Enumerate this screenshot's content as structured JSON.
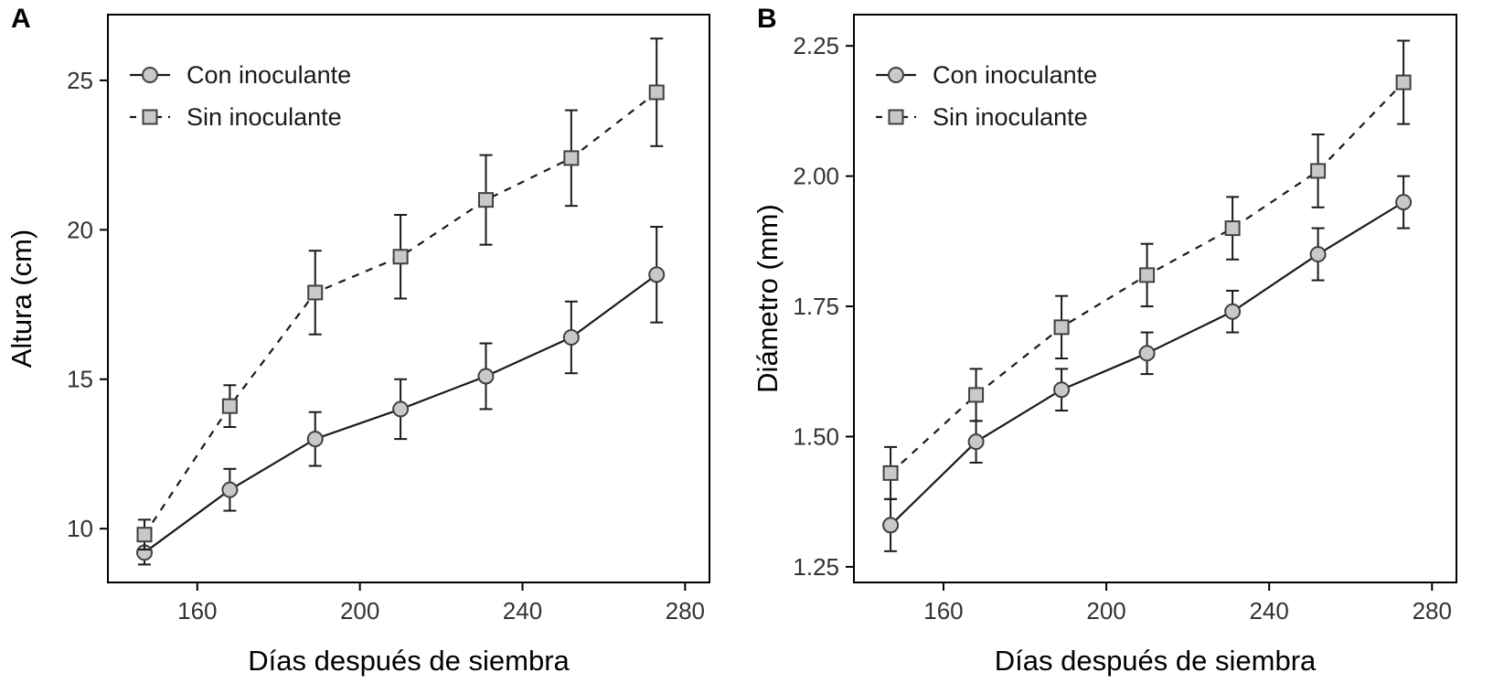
{
  "figure": {
    "background": "#ffffff"
  },
  "style": {
    "marker_fill": "#c9c9c9",
    "marker_stroke": "#404040",
    "line_color": "#1a1a1a",
    "axis_color": "#000000",
    "tick_text_color": "#333333",
    "title_text_color": "#000000"
  },
  "chart_data": [
    {
      "type": "line",
      "panel_label": "A",
      "xlabel": "Días después de siembra",
      "ylabel": "Altura (cm)",
      "xlim": [
        138,
        286
      ],
      "ylim": [
        8.2,
        27.2
      ],
      "x_ticks": [
        160,
        200,
        240,
        280
      ],
      "y_ticks": [
        10,
        15,
        20,
        25
      ],
      "y_decimals": 0,
      "x": [
        147,
        168,
        189,
        210,
        231,
        252,
        273
      ],
      "series": [
        {
          "name": "Con inoculante",
          "marker": "circle",
          "dash": false,
          "values": [
            9.2,
            11.3,
            13.0,
            14.0,
            15.1,
            16.4,
            18.5
          ],
          "errors": [
            0.4,
            0.7,
            0.9,
            1.0,
            1.1,
            1.2,
            1.6
          ]
        },
        {
          "name": "Sin inoculante",
          "marker": "square",
          "dash": true,
          "values": [
            9.8,
            14.1,
            17.9,
            19.1,
            21.0,
            22.4,
            24.6
          ],
          "errors": [
            0.5,
            0.7,
            1.4,
            1.4,
            1.5,
            1.6,
            1.8
          ]
        }
      ],
      "legend": {
        "entries": [
          "Con inoculante",
          "Sin inoculante"
        ],
        "position": "top-left-inside"
      },
      "grid": false
    },
    {
      "type": "line",
      "panel_label": "B",
      "xlabel": "Días después de siembra",
      "ylabel": "Diámetro (mm)",
      "xlim": [
        138,
        286
      ],
      "ylim": [
        1.22,
        2.31
      ],
      "x_ticks": [
        160,
        200,
        240,
        280
      ],
      "y_ticks": [
        1.25,
        1.5,
        1.75,
        2.0,
        2.25
      ],
      "y_decimals": 2,
      "x": [
        147,
        168,
        189,
        210,
        231,
        252,
        273
      ],
      "series": [
        {
          "name": "Con inoculante",
          "marker": "circle",
          "dash": false,
          "values": [
            1.33,
            1.49,
            1.59,
            1.66,
            1.74,
            1.85,
            1.95
          ],
          "errors": [
            0.05,
            0.04,
            0.04,
            0.04,
            0.04,
            0.05,
            0.05
          ]
        },
        {
          "name": "Sin inoculante",
          "marker": "square",
          "dash": true,
          "values": [
            1.43,
            1.58,
            1.71,
            1.81,
            1.9,
            2.01,
            2.18
          ],
          "errors": [
            0.05,
            0.05,
            0.06,
            0.06,
            0.06,
            0.07,
            0.08
          ]
        }
      ],
      "legend": {
        "entries": [
          "Con inoculante",
          "Sin inoculante"
        ],
        "position": "top-left-inside"
      },
      "grid": false
    }
  ]
}
